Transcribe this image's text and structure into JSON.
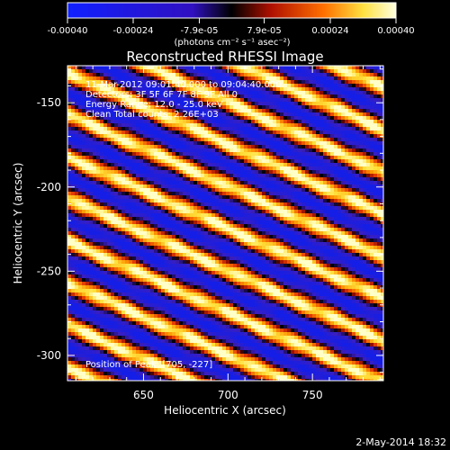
{
  "chart_data": {
    "type": "heatmap",
    "title": "Reconstructed RHESSI Image",
    "xlabel": "Heliocentric X (arcsec)",
    "ylabel": "Heliocentric Y (arcsec)",
    "xlim": [
      605,
      792
    ],
    "ylim": [
      -315,
      -128
    ],
    "x_ticks": [
      650,
      700,
      750
    ],
    "y_ticks": [
      -150,
      -200,
      -250,
      -300
    ],
    "x_tick_labels": [
      "650",
      "700",
      "750"
    ],
    "y_tick_labels": [
      "-150",
      "-200",
      "-250",
      "-300"
    ],
    "colorbar": {
      "min": -0.0004,
      "max": 0.0004,
      "tick_labels": [
        "-0.00040",
        "-0.00024",
        "-7.9e-05",
        "7.9e-05",
        "0.00024",
        "0.00040"
      ],
      "unit_label": "(photons cm⁻² s⁻¹ asec⁻²)"
    },
    "annotations": [
      "11-Mar-2012 09:01:40.000 to 09:04:40.000",
      "Detectors: 3F 5F 6F 7F 8F 9F All 0",
      "Energy Range: 12.0 - 25.0 keV",
      "Clean     Total counts: 2.26E+03"
    ],
    "peak_label": "Position of Peak: [705, -227]",
    "peak": [
      705,
      -227
    ],
    "stripes": {
      "description": "diagonal alternating bright (positive) and dark/blue (negative) fringes",
      "slope_arcsec_per_arcsec": -0.45,
      "period_arcsec": 25,
      "amplitude": 0.0004
    }
  },
  "footer_date": "2-May-2014 18:32",
  "colors": {
    "background": "#000000",
    "axis": "#ffffff"
  }
}
